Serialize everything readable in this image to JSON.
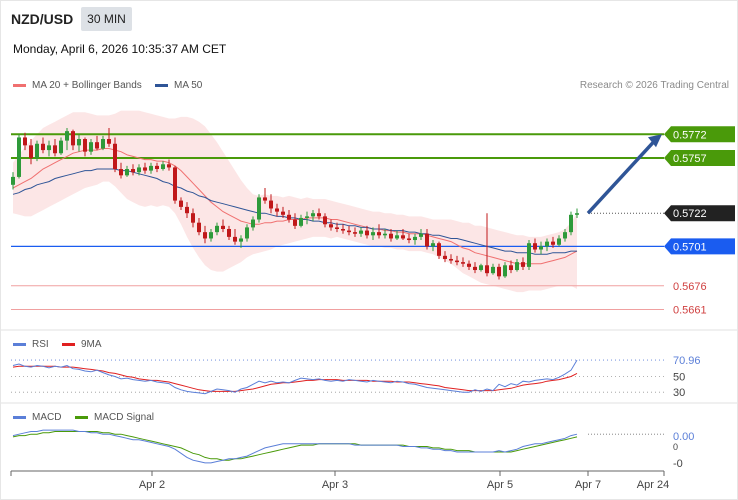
{
  "header": {
    "symbol": "NZD/USD",
    "timeframe": "30 MIN",
    "datetime": "Monday, April 6, 2026 10:35:37 AM CET"
  },
  "legend": {
    "ma20": "MA 20 + Bollinger Bands",
    "ma50": "MA 50",
    "credit": "Research © 2026 Trading Central"
  },
  "rsi_legend": {
    "rsi": "RSI",
    "ma": "9MA"
  },
  "macd_legend": {
    "macd": "MACD",
    "signal": "MACD Signal"
  },
  "colors": {
    "ma20": "#f07070",
    "ma50": "#2f5597",
    "resistance": "#4a9a0a",
    "support": "#1a5cf0",
    "last": "#222222",
    "weak": "#f0a0a0",
    "bull": "#2e9a3a",
    "bear": "#c0181a",
    "rsi": "#5b7fd8",
    "macd": "#5b7fd8",
    "signal": "#4a9a0a"
  },
  "chart_data": {
    "type": "candlestick",
    "price_axis": {
      "min": 0.5648,
      "max": 0.5795
    },
    "levels": [
      {
        "value": 0.5772,
        "label": "0.5772",
        "kind": "resistance"
      },
      {
        "value": 0.5757,
        "label": "0.5757",
        "kind": "resistance"
      },
      {
        "value": 0.5722,
        "label": "0.5722",
        "kind": "last"
      },
      {
        "value": 0.5701,
        "label": "0.5701",
        "kind": "support"
      },
      {
        "value": 0.5676,
        "label": "0.5676",
        "kind": "weak"
      },
      {
        "value": 0.5661,
        "label": "0.5661",
        "kind": "weak"
      }
    ],
    "x_labels": [
      "Apr 2",
      "Apr 3",
      "Apr 5",
      "Apr 7",
      "Apr 24"
    ],
    "projection": {
      "from": 0.5722,
      "to": 0.5772
    },
    "candles": [
      [
        0.574,
        0.5748,
        0.5737,
        0.5745
      ],
      [
        0.5745,
        0.5772,
        0.5744,
        0.577
      ],
      [
        0.577,
        0.5773,
        0.5762,
        0.5765
      ],
      [
        0.5765,
        0.5769,
        0.5753,
        0.5757
      ],
      [
        0.5757,
        0.5768,
        0.5755,
        0.5766
      ],
      [
        0.5766,
        0.577,
        0.576,
        0.5762
      ],
      [
        0.5762,
        0.5768,
        0.5758,
        0.5765
      ],
      [
        0.5765,
        0.5769,
        0.5758,
        0.576
      ],
      [
        0.576,
        0.577,
        0.5759,
        0.5768
      ],
      [
        0.5768,
        0.5776,
        0.5762,
        0.5774
      ],
      [
        0.5774,
        0.5775,
        0.5762,
        0.5765
      ],
      [
        0.5765,
        0.5772,
        0.5761,
        0.5769
      ],
      [
        0.5769,
        0.577,
        0.5758,
        0.5761
      ],
      [
        0.5761,
        0.5769,
        0.5759,
        0.5767
      ],
      [
        0.5767,
        0.5771,
        0.5762,
        0.5763
      ],
      [
        0.5763,
        0.5771,
        0.5762,
        0.5769
      ],
      [
        0.5769,
        0.5776,
        0.5764,
        0.5766
      ],
      [
        0.5766,
        0.577,
        0.5748,
        0.575
      ],
      [
        0.575,
        0.5754,
        0.5744,
        0.5746
      ],
      [
        0.5746,
        0.5752,
        0.5745,
        0.575
      ],
      [
        0.575,
        0.5753,
        0.5746,
        0.5748
      ],
      [
        0.5748,
        0.5753,
        0.5746,
        0.5751
      ],
      [
        0.5751,
        0.5754,
        0.5747,
        0.5749
      ],
      [
        0.5749,
        0.5754,
        0.5747,
        0.5752
      ],
      [
        0.5752,
        0.5754,
        0.5748,
        0.575
      ],
      [
        0.575,
        0.5755,
        0.5749,
        0.5753
      ],
      [
        0.5753,
        0.5756,
        0.5749,
        0.5751
      ],
      [
        0.5751,
        0.5752,
        0.5728,
        0.573
      ],
      [
        0.573,
        0.5732,
        0.5724,
        0.5726
      ],
      [
        0.5726,
        0.5729,
        0.5719,
        0.5722
      ],
      [
        0.5722,
        0.5725,
        0.5713,
        0.5716
      ],
      [
        0.5716,
        0.5719,
        0.5708,
        0.571
      ],
      [
        0.571,
        0.5714,
        0.5703,
        0.5706
      ],
      [
        0.5706,
        0.5712,
        0.5704,
        0.571
      ],
      [
        0.571,
        0.5716,
        0.5708,
        0.5714
      ],
      [
        0.5714,
        0.5718,
        0.571,
        0.5712
      ],
      [
        0.5712,
        0.5714,
        0.5705,
        0.5707
      ],
      [
        0.5707,
        0.5712,
        0.5702,
        0.5704
      ],
      [
        0.5704,
        0.5708,
        0.57,
        0.5706
      ],
      [
        0.5706,
        0.5715,
        0.5704,
        0.5713
      ],
      [
        0.5713,
        0.572,
        0.5711,
        0.5718
      ],
      [
        0.5718,
        0.5734,
        0.5716,
        0.5732
      ],
      [
        0.5732,
        0.5738,
        0.5728,
        0.573
      ],
      [
        0.573,
        0.5734,
        0.5722,
        0.5725
      ],
      [
        0.5725,
        0.5728,
        0.572,
        0.5723
      ],
      [
        0.5723,
        0.5726,
        0.5719,
        0.5721
      ],
      [
        0.5721,
        0.5724,
        0.5716,
        0.5718
      ],
      [
        0.5718,
        0.5722,
        0.5712,
        0.5714
      ],
      [
        0.5714,
        0.5721,
        0.5713,
        0.5719
      ],
      [
        0.5719,
        0.5723,
        0.5715,
        0.572
      ],
      [
        0.572,
        0.5724,
        0.5717,
        0.5722
      ],
      [
        0.5722,
        0.5725,
        0.5718,
        0.572
      ],
      [
        0.572,
        0.5722,
        0.5713,
        0.5715
      ],
      [
        0.5715,
        0.5718,
        0.5711,
        0.5713
      ],
      [
        0.5713,
        0.5716,
        0.571,
        0.5712
      ],
      [
        0.5712,
        0.5715,
        0.5709,
        0.5711
      ],
      [
        0.5711,
        0.5714,
        0.5708,
        0.571
      ],
      [
        0.571,
        0.5713,
        0.5707,
        0.5709
      ],
      [
        0.5709,
        0.5713,
        0.5707,
        0.5711
      ],
      [
        0.5711,
        0.5714,
        0.5706,
        0.5708
      ],
      [
        0.5708,
        0.5713,
        0.5705,
        0.571
      ],
      [
        0.571,
        0.5715,
        0.5706,
        0.5708
      ],
      [
        0.5708,
        0.5712,
        0.5706,
        0.5709
      ],
      [
        0.5709,
        0.5712,
        0.5704,
        0.5706
      ],
      [
        0.5706,
        0.5711,
        0.5705,
        0.5708
      ],
      [
        0.5708,
        0.5712,
        0.5705,
        0.5706
      ],
      [
        0.5706,
        0.5709,
        0.5703,
        0.5705
      ],
      [
        0.5705,
        0.5709,
        0.5702,
        0.5707
      ],
      [
        0.5707,
        0.5712,
        0.5705,
        0.5709
      ],
      [
        0.5709,
        0.5712,
        0.5699,
        0.5701
      ],
      [
        0.5701,
        0.5705,
        0.5698,
        0.5703
      ],
      [
        0.5703,
        0.5704,
        0.5693,
        0.5695
      ],
      [
        0.5695,
        0.5698,
        0.5691,
        0.5693
      ],
      [
        0.5693,
        0.5696,
        0.569,
        0.5692
      ],
      [
        0.5692,
        0.5695,
        0.5689,
        0.5691
      ],
      [
        0.5691,
        0.5694,
        0.5688,
        0.569
      ],
      [
        0.569,
        0.5692,
        0.5686,
        0.5688
      ],
      [
        0.5688,
        0.5691,
        0.5684,
        0.5686
      ],
      [
        0.5686,
        0.569,
        0.5685,
        0.5689
      ],
      [
        0.5689,
        0.5722,
        0.5682,
        0.5684
      ],
      [
        0.5684,
        0.569,
        0.5683,
        0.5688
      ],
      [
        0.5688,
        0.569,
        0.568,
        0.5682
      ],
      [
        0.5682,
        0.5691,
        0.5681,
        0.5689
      ],
      [
        0.5689,
        0.5692,
        0.5684,
        0.5686
      ],
      [
        0.5686,
        0.5693,
        0.5685,
        0.5691
      ],
      [
        0.5691,
        0.5694,
        0.5686,
        0.5688
      ],
      [
        0.5688,
        0.5705,
        0.5686,
        0.5703
      ],
      [
        0.5703,
        0.5706,
        0.5697,
        0.5699
      ],
      [
        0.5699,
        0.5704,
        0.5696,
        0.5701
      ],
      [
        0.5701,
        0.5706,
        0.5698,
        0.5704
      ],
      [
        0.5704,
        0.5707,
        0.57,
        0.5702
      ],
      [
        0.5702,
        0.5708,
        0.5701,
        0.5706
      ],
      [
        0.5706,
        0.5712,
        0.5704,
        0.571
      ],
      [
        0.571,
        0.5723,
        0.5708,
        0.5721
      ],
      [
        0.5721,
        0.5725,
        0.5719,
        0.5722
      ]
    ],
    "ma20": [
      0.5738,
      0.574,
      0.5742,
      0.5744,
      0.5747,
      0.575,
      0.5752,
      0.5754,
      0.5756,
      0.5758,
      0.576,
      0.5761,
      0.5762,
      0.5762,
      0.5762,
      0.5763,
      0.5763,
      0.5762,
      0.5761,
      0.5759,
      0.5758,
      0.5757,
      0.5756,
      0.5756,
      0.5755,
      0.5755,
      0.5754,
      0.5752,
      0.5749,
      0.5745,
      0.5741,
      0.5737,
      0.5733,
      0.5729,
      0.5726,
      0.5723,
      0.5721,
      0.5719,
      0.5717,
      0.5716,
      0.5715,
      0.5715,
      0.5716,
      0.5716,
      0.5717,
      0.5717,
      0.5718,
      0.5718,
      0.5718,
      0.5719,
      0.5719,
      0.5719,
      0.5719,
      0.5718,
      0.5718,
      0.5717,
      0.5716,
      0.5715,
      0.5714,
      0.5713,
      0.5712,
      0.5712,
      0.5711,
      0.5711,
      0.571,
      0.571,
      0.5709,
      0.5709,
      0.5709,
      0.5708,
      0.5707,
      0.5706,
      0.5705,
      0.5704,
      0.5702,
      0.57,
      0.5699,
      0.5697,
      0.5696,
      0.5695,
      0.5694,
      0.5693,
      0.5692,
      0.5691,
      0.569,
      0.569,
      0.569,
      0.569,
      0.569,
      0.5691,
      0.5692,
      0.5693,
      0.5694,
      0.5696,
      0.5698
    ],
    "ma50": [
      0.5734,
      0.5735,
      0.5737,
      0.5738,
      0.574,
      0.5741,
      0.5742,
      0.5744,
      0.5745,
      0.5746,
      0.5747,
      0.5748,
      0.5749,
      0.5749,
      0.575,
      0.575,
      0.575,
      0.575,
      0.5749,
      0.5749,
      0.5748,
      0.5747,
      0.5746,
      0.5745,
      0.5744,
      0.5742,
      0.5741,
      0.5739,
      0.5738,
      0.5736,
      0.5735,
      0.5733,
      0.5732,
      0.573,
      0.5729,
      0.5728,
      0.5727,
      0.5726,
      0.5725,
      0.5724,
      0.5723,
      0.5722,
      0.5722,
      0.5721,
      0.572,
      0.572,
      0.5719,
      0.5719,
      0.5718,
      0.5718,
      0.5717,
      0.5717,
      0.5716,
      0.5716,
      0.5715,
      0.5715,
      0.5714,
      0.5714,
      0.5713,
      0.5713,
      0.5712,
      0.5712,
      0.5712,
      0.5711,
      0.5711,
      0.5711,
      0.571,
      0.571,
      0.5709,
      0.5709,
      0.5708,
      0.5708,
      0.5707,
      0.5706,
      0.5706,
      0.5705,
      0.5704,
      0.5703,
      0.5702,
      0.5701,
      0.57,
      0.5699,
      0.5698,
      0.5698,
      0.5697,
      0.5697,
      0.5697,
      0.5696,
      0.5696,
      0.5696,
      0.5697,
      0.5697,
      0.5697,
      0.5698,
      0.5698
    ],
    "bb_width": [
      0.0016,
      0.0019,
      0.0022,
      0.0024,
      0.0025,
      0.0026,
      0.0026,
      0.0026,
      0.0026,
      0.0026,
      0.0026,
      0.0025,
      0.0024,
      0.0023,
      0.0022,
      0.0021,
      0.0021,
      0.0023,
      0.0026,
      0.0028,
      0.0029,
      0.003,
      0.003,
      0.0029,
      0.0029,
      0.0028,
      0.0028,
      0.003,
      0.0034,
      0.0038,
      0.0041,
      0.0043,
      0.0044,
      0.0043,
      0.0041,
      0.0038,
      0.0034,
      0.003,
      0.0026,
      0.0022,
      0.0019,
      0.0018,
      0.0018,
      0.0017,
      0.0016,
      0.0015,
      0.0015,
      0.0014,
      0.0013,
      0.0013,
      0.0012,
      0.0012,
      0.0012,
      0.0012,
      0.0011,
      0.0011,
      0.0011,
      0.0011,
      0.0011,
      0.0011,
      0.0011,
      0.0011,
      0.0011,
      0.0011,
      0.0011,
      0.0011,
      0.0011,
      0.0011,
      0.0011,
      0.0011,
      0.0011,
      0.0012,
      0.0013,
      0.0014,
      0.0015,
      0.0016,
      0.0017,
      0.0017,
      0.0018,
      0.0018,
      0.0018,
      0.0018,
      0.0018,
      0.0018,
      0.0018,
      0.0018,
      0.0017,
      0.0017,
      0.0017,
      0.0017,
      0.0017,
      0.0017,
      0.0018,
      0.002,
      0.0024
    ],
    "rsi": {
      "last": "70.96",
      "levels": [
        70.96,
        50,
        30
      ],
      "level_labels": [
        "70.96",
        "50",
        "30"
      ],
      "axis": [
        20,
        80
      ],
      "rsi_values": [
        64,
        66,
        63,
        62,
        64,
        63,
        61,
        63,
        62,
        64,
        60,
        59,
        57,
        56,
        58,
        55,
        52,
        50,
        47,
        48,
        46,
        45,
        44,
        45,
        43,
        42,
        41,
        36,
        33,
        31,
        30,
        29,
        28,
        31,
        34,
        33,
        32,
        30,
        34,
        36,
        40,
        44,
        42,
        44,
        42,
        43,
        42,
        45,
        48,
        47,
        46,
        47,
        45,
        44,
        45,
        44,
        46,
        45,
        44,
        43,
        45,
        44,
        43,
        42,
        44,
        43,
        41,
        40,
        38,
        36,
        35,
        34,
        33,
        32,
        31,
        30,
        30,
        33,
        31,
        34,
        32,
        40,
        37,
        41,
        39,
        44,
        43,
        45,
        46,
        47,
        46,
        49,
        53,
        58,
        71
      ],
      "ma_values": [
        62,
        63,
        63,
        63,
        63,
        63,
        63,
        63,
        62,
        62,
        62,
        61,
        60,
        59,
        58,
        57,
        55,
        54,
        52,
        50,
        49,
        47,
        46,
        45,
        45,
        44,
        43,
        41,
        39,
        37,
        35,
        33,
        32,
        31,
        31,
        31,
        31,
        31,
        32,
        33,
        34,
        36,
        38,
        40,
        41,
        42,
        42,
        43,
        44,
        45,
        45,
        46,
        46,
        46,
        46,
        45,
        45,
        45,
        45,
        45,
        44,
        44,
        44,
        44,
        43,
        43,
        43,
        42,
        41,
        40,
        39,
        38,
        36,
        35,
        34,
        33,
        32,
        32,
        32,
        32,
        32,
        33,
        34,
        35,
        37,
        39,
        40,
        41,
        42,
        44,
        45,
        46,
        48,
        50,
        54
      ]
    },
    "macd": {
      "last": "0.00",
      "axis_labels": [
        "0.00",
        "0",
        "-0"
      ],
      "axis": [
        -0.0022,
        0.0008
      ],
      "macd_values": [
        0.0001,
        0.0002,
        0.0003,
        0.0004,
        0.0004,
        0.0005,
        0.0005,
        0.0005,
        0.0005,
        0.0005,
        0.0005,
        0.0004,
        0.0004,
        0.0003,
        0.0003,
        0.0002,
        0.0002,
        0.0001,
        0.0,
        -0.0001,
        -0.0002,
        -0.0002,
        -0.0003,
        -0.0004,
        -0.0005,
        -0.0006,
        -0.0007,
        -0.0009,
        -0.0012,
        -0.0015,
        -0.0017,
        -0.0018,
        -0.0019,
        -0.0019,
        -0.0018,
        -0.0017,
        -0.0016,
        -0.0016,
        -0.0015,
        -0.0014,
        -0.0012,
        -0.001,
        -0.0008,
        -0.0007,
        -0.0006,
        -0.0005,
        -0.0005,
        -0.0005,
        -0.0005,
        -0.0005,
        -0.0005,
        -0.0005,
        -0.0005,
        -0.0005,
        -0.0005,
        -0.0005,
        -0.0005,
        -0.0006,
        -0.0006,
        -0.0006,
        -0.0006,
        -0.0006,
        -0.0006,
        -0.0006,
        -0.0006,
        -0.0007,
        -0.0007,
        -0.0007,
        -0.0008,
        -0.0008,
        -0.0009,
        -0.0009,
        -0.001,
        -0.001,
        -0.0011,
        -0.0011,
        -0.0011,
        -0.0011,
        -0.0011,
        -0.0011,
        -0.0011,
        -0.001,
        -0.0011,
        -0.001,
        -0.0009,
        -0.0007,
        -0.0006,
        -0.0005,
        -0.0005,
        -0.0004,
        -0.0003,
        -0.0002,
        -0.0001,
        0.0001,
        0.0002
      ],
      "signal_values": [
        0.0,
        0.0001,
        0.0001,
        0.0002,
        0.0002,
        0.0003,
        0.0003,
        0.0004,
        0.0004,
        0.0004,
        0.0004,
        0.0004,
        0.0004,
        0.0004,
        0.0004,
        0.0003,
        0.0003,
        0.0002,
        0.0002,
        0.0001,
        0.0,
        -0.0001,
        -0.0002,
        -0.0003,
        -0.0004,
        -0.0005,
        -0.0006,
        -0.0007,
        -0.0008,
        -0.001,
        -0.0012,
        -0.0013,
        -0.0015,
        -0.0016,
        -0.0016,
        -0.0017,
        -0.0017,
        -0.0016,
        -0.0016,
        -0.0015,
        -0.0014,
        -0.0013,
        -0.0012,
        -0.0011,
        -0.001,
        -0.0009,
        -0.0008,
        -0.0007,
        -0.0006,
        -0.0006,
        -0.0006,
        -0.0005,
        -0.0005,
        -0.0005,
        -0.0005,
        -0.0005,
        -0.0005,
        -0.0005,
        -0.0006,
        -0.0006,
        -0.0006,
        -0.0006,
        -0.0006,
        -0.0006,
        -0.0006,
        -0.0006,
        -0.0007,
        -0.0007,
        -0.0007,
        -0.0007,
        -0.0008,
        -0.0008,
        -0.0009,
        -0.0009,
        -0.001,
        -0.001,
        -0.001,
        -0.0011,
        -0.0011,
        -0.0011,
        -0.0011,
        -0.0011,
        -0.0011,
        -0.0011,
        -0.001,
        -0.0009,
        -0.0008,
        -0.0007,
        -0.0006,
        -0.0005,
        -0.0004,
        -0.0003,
        -0.0002,
        -0.0001,
        0.0
      ]
    }
  }
}
